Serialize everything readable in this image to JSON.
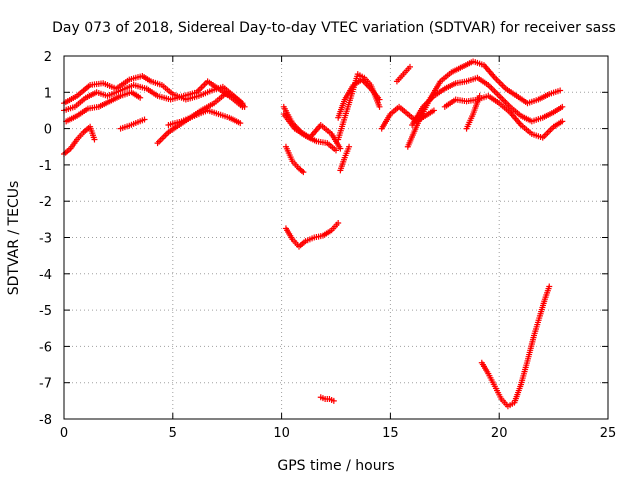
{
  "chart_data": {
    "type": "scatter",
    "title": "Day 073 of 2018, Sidereal Day-to-day VTEC variation (SDTVAR) for receiver sass",
    "xlabel": "GPS time / hours",
    "ylabel": "SDTVAR / TECUs",
    "xlim": [
      0,
      25
    ],
    "ylim": [
      -8,
      2
    ],
    "xticks": [
      0,
      5,
      10,
      15,
      20,
      25
    ],
    "yticks": [
      -8,
      -7,
      -6,
      -5,
      -4,
      -3,
      -2,
      -1,
      0,
      1,
      2
    ],
    "grid": true,
    "marker": "+",
    "series": [
      {
        "name": "SDTVAR",
        "color": "#ff0000",
        "tracks": [
          {
            "x": [
              0.0,
              0.6,
              1.2,
              1.8,
              2.4,
              3.0,
              3.6,
              4.0,
              4.5,
              5.0,
              5.6,
              6.2,
              6.8,
              7.3,
              7.8,
              8.3
            ],
            "y": [
              0.7,
              0.9,
              1.2,
              1.25,
              1.1,
              1.35,
              1.45,
              1.3,
              1.2,
              0.95,
              0.8,
              0.9,
              1.05,
              1.15,
              0.9,
              0.6
            ]
          },
          {
            "x": [
              0.0,
              0.5,
              1.0,
              1.5,
              2.0,
              2.6,
              3.2,
              3.8,
              4.3,
              4.9,
              5.5,
              6.1,
              6.6,
              7.1,
              7.7,
              8.2
            ],
            "y": [
              0.5,
              0.6,
              0.85,
              1.0,
              0.9,
              1.05,
              1.2,
              1.1,
              0.9,
              0.8,
              0.9,
              1.0,
              1.3,
              1.1,
              0.85,
              0.6
            ]
          },
          {
            "x": [
              0.0,
              0.3,
              0.6,
              0.9,
              1.2,
              1.4
            ],
            "y": [
              -0.7,
              -0.55,
              -0.3,
              -0.1,
              0.05,
              -0.3
            ]
          },
          {
            "x": [
              0.1,
              0.6,
              1.1,
              1.6,
              2.1,
              2.6,
              3.1,
              3.5
            ],
            "y": [
              0.2,
              0.35,
              0.55,
              0.6,
              0.75,
              0.9,
              1.0,
              0.85
            ]
          },
          {
            "x": [
              2.6,
              3.0,
              3.4,
              3.7
            ],
            "y": [
              0.0,
              0.08,
              0.18,
              0.25
            ]
          },
          {
            "x": [
              4.3,
              4.8,
              5.3,
              5.8,
              6.3,
              6.9,
              7.4,
              7.8,
              8.2
            ],
            "y": [
              -0.4,
              -0.1,
              0.1,
              0.3,
              0.5,
              0.7,
              0.95,
              0.9,
              0.7
            ]
          },
          {
            "x": [
              4.8,
              5.4,
              6.0,
              6.6,
              7.1,
              7.6,
              8.1
            ],
            "y": [
              0.1,
              0.2,
              0.35,
              0.5,
              0.4,
              0.3,
              0.15
            ]
          },
          {
            "x": [
              10.1,
              10.5,
              10.9,
              11.3,
              11.8,
              12.3,
              12.7
            ],
            "y": [
              0.6,
              0.15,
              -0.1,
              -0.25,
              0.1,
              -0.15,
              -0.55
            ]
          },
          {
            "x": [
              10.2,
              10.5,
              10.8,
              11.0
            ],
            "y": [
              -0.5,
              -0.9,
              -1.1,
              -1.2
            ]
          },
          {
            "x": [
              10.1,
              10.6,
              11.1,
              11.6,
              12.1,
              12.5
            ],
            "y": [
              0.4,
              0.0,
              -0.2,
              -0.35,
              -0.4,
              -0.6
            ]
          },
          {
            "x": [
              10.2,
              10.5,
              10.8,
              11.1,
              11.5,
              11.9,
              12.3,
              12.6
            ],
            "y": [
              -2.75,
              -3.05,
              -3.25,
              -3.1,
              -3.0,
              -2.95,
              -2.8,
              -2.6
            ]
          },
          {
            "x": [
              11.8,
              12.0,
              12.2,
              12.4
            ],
            "y": [
              -7.4,
              -7.45,
              -7.45,
              -7.5
            ]
          },
          {
            "x": [
              12.6,
              12.9,
              13.2,
              13.5,
              13.8,
              14.1,
              14.5
            ],
            "y": [
              -0.3,
              0.3,
              0.9,
              1.5,
              1.4,
              1.2,
              0.6
            ]
          },
          {
            "x": [
              12.6,
              12.9,
              13.3,
              13.7,
              14.1,
              14.5
            ],
            "y": [
              0.3,
              0.8,
              1.2,
              1.35,
              1.1,
              0.8
            ]
          },
          {
            "x": [
              12.7,
              12.9,
              13.1
            ],
            "y": [
              -1.15,
              -0.8,
              -0.5
            ]
          },
          {
            "x": [
              14.6,
              15.0,
              15.4,
              15.8,
              16.2,
              16.6,
              17.0
            ],
            "y": [
              0.0,
              0.4,
              0.6,
              0.4,
              0.2,
              0.35,
              0.5
            ]
          },
          {
            "x": [
              15.3,
              15.6,
              15.9
            ],
            "y": [
              1.3,
              1.5,
              1.7
            ]
          },
          {
            "x": [
              15.8,
              16.3,
              16.8,
              17.3,
              17.8,
              18.3,
              18.8,
              19.3,
              19.8,
              20.3,
              20.8,
              21.3,
              21.8,
              22.3,
              22.8
            ],
            "y": [
              -0.5,
              0.2,
              0.8,
              1.3,
              1.55,
              1.7,
              1.85,
              1.75,
              1.4,
              1.1,
              0.9,
              0.7,
              0.8,
              0.95,
              1.05
            ]
          },
          {
            "x": [
              16.0,
              16.5,
              17.0,
              17.5,
              18.0,
              18.5,
              19.0,
              19.5,
              20.0,
              20.5,
              21.0,
              21.5,
              22.0,
              22.5,
              22.9
            ],
            "y": [
              0.1,
              0.6,
              0.9,
              1.1,
              1.25,
              1.3,
              1.4,
              1.2,
              0.9,
              0.6,
              0.35,
              0.2,
              0.3,
              0.45,
              0.6
            ]
          },
          {
            "x": [
              17.5,
              18.0,
              18.5,
              19.0,
              19.5,
              20.0,
              20.5,
              21.0,
              21.5,
              22.0,
              22.5,
              22.9
            ],
            "y": [
              0.6,
              0.8,
              0.75,
              0.8,
              0.9,
              0.7,
              0.45,
              0.1,
              -0.15,
              -0.25,
              0.05,
              0.2
            ]
          },
          {
            "x": [
              18.5,
              18.8,
              19.1
            ],
            "y": [
              0.0,
              0.4,
              0.9
            ]
          },
          {
            "x": [
              19.2,
              19.5,
              19.8,
              20.1,
              20.4,
              20.7,
              21.0,
              21.3,
              21.6,
              21.9,
              22.1,
              22.3
            ],
            "y": [
              -6.45,
              -6.75,
              -7.1,
              -7.45,
              -7.65,
              -7.55,
              -7.05,
              -6.4,
              -5.7,
              -5.1,
              -4.7,
              -4.35
            ]
          }
        ]
      }
    ]
  }
}
